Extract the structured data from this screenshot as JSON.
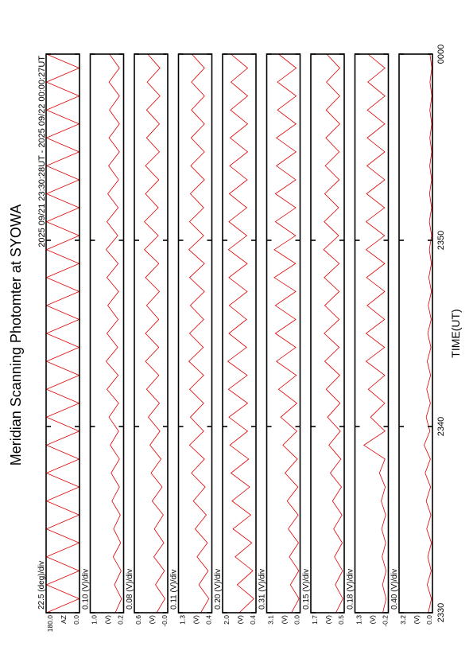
{
  "title": "Meridian Scanning Photomter at SYOWA",
  "subtitle": "2025 09/21 23:30:28UT - 2025 09/22 00:00:27UT",
  "chart_data": [
    {
      "type": "line",
      "label": "22.5 (deg)/div",
      "ylabel": "AZ",
      "x": [
        0,
        0.75,
        1.5,
        2.25,
        3,
        3.75,
        4.5,
        5.25,
        6,
        6.75,
        7.5,
        8.25,
        9,
        9.75,
        10.5,
        11.25,
        12,
        12.75,
        13.5,
        14.25,
        15,
        15.75,
        16.5,
        17.25,
        18,
        18.75,
        19.5,
        20.25,
        21,
        21.75,
        22.5,
        23.25,
        24,
        24.75,
        25.5,
        26.25,
        27,
        27.75,
        28.5,
        29.25,
        30
      ],
      "series": [
        {
          "color": "#e00000",
          "values": [
            178,
            2,
            178,
            2,
            178,
            2,
            178,
            2,
            178,
            2,
            178,
            2,
            178,
            2,
            178,
            2,
            178,
            2,
            178,
            2,
            178,
            2,
            178,
            2,
            178,
            2,
            178,
            2,
            178,
            2,
            178,
            2,
            178,
            2,
            178,
            2,
            178,
            2,
            178,
            2,
            178
          ]
        }
      ],
      "xlim": [
        0,
        30
      ],
      "ylim": [
        0,
        180
      ],
      "yticks": [
        {
          "value": 0,
          "label": "0.0"
        },
        {
          "value": 180,
          "label": "180.0"
        }
      ]
    },
    {
      "type": "line",
      "label": "0.10 (V)/div",
      "ylabel": "(V)",
      "x": [
        0,
        0.75,
        1.5,
        2.25,
        3,
        3.75,
        4.5,
        5.25,
        6,
        6.75,
        7.5,
        8.25,
        9,
        9.75,
        10.5,
        11.25,
        12,
        12.75,
        13.5,
        14.25,
        15,
        15.75,
        16.5,
        17.25,
        18,
        18.75,
        19.5,
        20.25,
        21,
        21.75,
        22.5,
        23.25,
        24,
        24.75,
        25.5,
        26.25,
        27,
        27.75,
        28.5,
        29.25,
        30
      ],
      "series": [
        {
          "color": "#e00000",
          "values": [
            0.4,
            0.25,
            0.42,
            0.26,
            0.45,
            0.27,
            0.44,
            0.28,
            0.48,
            0.3,
            0.5,
            0.3,
            0.52,
            0.32,
            0.55,
            0.32,
            0.6,
            0.33,
            0.62,
            0.34,
            0.6,
            0.33,
            0.58,
            0.32,
            0.6,
            0.33,
            0.62,
            0.34,
            0.6,
            0.33,
            0.58,
            0.32,
            0.56,
            0.3,
            0.55,
            0.3,
            0.54,
            0.3,
            0.55,
            0.3,
            0.54
          ]
        }
      ],
      "xlim": [
        0,
        30
      ],
      "ylim": [
        0.2,
        1.0
      ],
      "yticks": [
        0.2,
        {
          "value": 1.0,
          "label": "1.0"
        }
      ]
    },
    {
      "type": "line",
      "label": "0.08 (V)/div",
      "ylabel": "(V)",
      "x": [
        0,
        0.75,
        1.5,
        2.25,
        3,
        3.75,
        4.5,
        5.25,
        6,
        6.75,
        7.5,
        8.25,
        9,
        9.75,
        10.5,
        11.25,
        12,
        12.75,
        13.5,
        14.25,
        15,
        15.75,
        16.5,
        17.25,
        18,
        18.75,
        19.5,
        20.25,
        21,
        21.75,
        22.5,
        23.25,
        24,
        24.75,
        25.5,
        26.25,
        27,
        27.75,
        28.5,
        29.25,
        30
      ],
      "series": [
        {
          "color": "#e00000",
          "values": [
            0.2,
            0.05,
            0.22,
            0.06,
            0.25,
            0.07,
            0.24,
            0.08,
            0.28,
            0.1,
            0.3,
            0.12,
            0.32,
            0.14,
            0.35,
            0.15,
            0.38,
            0.16,
            0.4,
            0.16,
            0.4,
            0.16,
            0.38,
            0.15,
            0.4,
            0.16,
            0.42,
            0.17,
            0.42,
            0.17,
            0.4,
            0.16,
            0.4,
            0.15,
            0.38,
            0.15,
            0.38,
            0.14,
            0.37,
            0.14,
            0.36
          ]
        }
      ],
      "xlim": [
        0,
        30
      ],
      "ylim": [
        0,
        0.6
      ],
      "yticks": [
        {
          "value": 0,
          "label": "-0.0"
        },
        0.6
      ]
    },
    {
      "type": "line",
      "label": "0.11 (V)/div",
      "ylabel": "(V)",
      "x": [
        0,
        0.75,
        1.5,
        2.25,
        3,
        3.75,
        4.5,
        5.25,
        6,
        6.75,
        7.5,
        8.25,
        9,
        9.75,
        10.5,
        11.25,
        12,
        12.75,
        13.5,
        14.25,
        15,
        15.75,
        16.5,
        17.25,
        18,
        18.75,
        19.5,
        20.25,
        21,
        21.75,
        22.5,
        23.25,
        24,
        24.75,
        25.5,
        26.25,
        27,
        27.75,
        28.5,
        29.25,
        30
      ],
      "series": [
        {
          "color": "#e00000",
          "values": [
            0.7,
            0.48,
            0.75,
            0.5,
            0.8,
            0.52,
            0.85,
            0.55,
            0.9,
            0.58,
            0.95,
            0.6,
            1.0,
            0.62,
            0.98,
            0.62,
            1.0,
            0.62,
            1.02,
            0.63,
            1.0,
            0.62,
            0.98,
            0.6,
            1.0,
            0.6,
            1.02,
            0.62,
            1.0,
            0.62,
            0.98,
            0.6,
            0.97,
            0.6,
            0.96,
            0.6,
            0.95,
            0.6,
            0.95,
            0.6,
            0.94
          ]
        }
      ],
      "xlim": [
        0,
        30
      ],
      "ylim": [
        0.4,
        1.3
      ],
      "yticks": [
        0.4,
        1.3
      ]
    },
    {
      "type": "line",
      "label": "0.20 (V)/div",
      "ylabel": "(V)",
      "x": [
        0,
        0.75,
        1.5,
        2.25,
        3,
        3.75,
        4.5,
        5.25,
        6,
        6.75,
        7.5,
        8.25,
        9,
        9.75,
        10.5,
        11.25,
        12,
        12.75,
        13.5,
        14.25,
        15,
        15.75,
        16.5,
        17.25,
        18,
        18.75,
        19.5,
        20.25,
        21,
        21.75,
        22.5,
        23.25,
        24,
        24.75,
        25.5,
        26.25,
        27,
        27.75,
        28.5,
        29.25,
        30
      ],
      "series": [
        {
          "color": "#e00000",
          "values": [
            1.2,
            0.5,
            1.3,
            0.55,
            1.4,
            0.6,
            1.5,
            0.65,
            1.55,
            0.7,
            1.6,
            0.75,
            1.65,
            0.8,
            1.7,
            0.8,
            1.72,
            0.82,
            1.75,
            0.85,
            1.7,
            0.85,
            1.68,
            0.82,
            1.7,
            0.82,
            1.72,
            0.84,
            1.7,
            0.84,
            1.68,
            0.82,
            1.66,
            0.8,
            1.64,
            0.8,
            1.62,
            0.8,
            1.6,
            0.8,
            1.6
          ]
        }
      ],
      "xlim": [
        0,
        30
      ],
      "ylim": [
        0.4,
        2.0
      ],
      "yticks": [
        0.4,
        {
          "value": 2.0,
          "label": "2.0"
        }
      ]
    },
    {
      "type": "line",
      "label": "0.31 (V)/div",
      "ylabel": "(V)",
      "x": [
        0,
        0.75,
        1.5,
        2.25,
        3,
        3.75,
        4.5,
        5.25,
        6,
        6.75,
        7.5,
        8.25,
        9,
        9.75,
        10.5,
        11.25,
        12,
        12.75,
        13.5,
        14.25,
        15,
        15.75,
        16.5,
        17.25,
        18,
        18.75,
        19.5,
        20.25,
        21,
        21.75,
        22.5,
        23.25,
        24,
        24.75,
        25.5,
        26.25,
        27,
        27.75,
        28.5,
        29.25,
        30
      ],
      "series": [
        {
          "color": "#e00000",
          "values": [
            0.8,
            0.1,
            0.9,
            0.12,
            1.0,
            0.15,
            1.1,
            0.18,
            1.2,
            0.2,
            1.4,
            0.25,
            1.6,
            0.3,
            1.8,
            0.3,
            2.0,
            0.35,
            2.2,
            0.4,
            2.3,
            0.4,
            2.3,
            0.4,
            2.4,
            0.42,
            2.4,
            0.42,
            2.3,
            0.4,
            2.3,
            0.4,
            2.2,
            0.38,
            2.2,
            0.38,
            2.1,
            0.36,
            2.1,
            0.36,
            2.0
          ]
        }
      ],
      "xlim": [
        0,
        30
      ],
      "ylim": [
        0,
        3.1
      ],
      "yticks": [
        {
          "value": 0,
          "label": "0.0"
        },
        3.1
      ]
    },
    {
      "type": "line",
      "label": "0.15 (V)/div",
      "ylabel": "(V)",
      "x": [
        0,
        0.75,
        1.5,
        2.25,
        3,
        3.75,
        4.5,
        5.25,
        6,
        6.75,
        7.5,
        8.25,
        9,
        9.75,
        10.5,
        11.25,
        12,
        12.75,
        13.5,
        14.25,
        15,
        15.75,
        16.5,
        17.25,
        18,
        18.75,
        19.5,
        20.25,
        21,
        21.75,
        22.5,
        23.25,
        24,
        24.75,
        25.5,
        26.25,
        27,
        27.75,
        28.5,
        29.25,
        30
      ],
      "series": [
        {
          "color": "#e00000",
          "values": [
            0.8,
            0.55,
            0.82,
            0.56,
            0.85,
            0.57,
            0.88,
            0.58,
            0.92,
            0.6,
            1.0,
            0.62,
            1.05,
            0.64,
            1.1,
            0.65,
            1.15,
            0.66,
            1.2,
            0.68,
            1.22,
            0.68,
            1.2,
            0.68,
            1.22,
            0.68,
            1.24,
            0.7,
            1.22,
            0.7,
            1.2,
            0.68,
            1.18,
            0.68,
            1.16,
            0.66,
            1.15,
            0.66,
            1.14,
            0.66,
            1.13
          ]
        }
      ],
      "xlim": [
        0,
        30
      ],
      "ylim": [
        0.5,
        1.7
      ],
      "yticks": [
        0.5,
        1.7
      ]
    },
    {
      "type": "line",
      "label": "0.18 (V)/div",
      "ylabel": "(V)",
      "x": [
        0,
        0.75,
        1.5,
        2.25,
        3,
        3.75,
        4.5,
        5.25,
        6,
        6.75,
        7.5,
        8.25,
        9,
        9.75,
        10.5,
        11.25,
        12,
        12.75,
        13.5,
        14.25,
        15,
        15.75,
        16.5,
        17.25,
        18,
        18.75,
        19.5,
        20.25,
        21,
        21.75,
        22.5,
        23.25,
        24,
        24.75,
        25.5,
        26.25,
        27,
        27.75,
        28.5,
        29.25,
        30
      ],
      "series": [
        {
          "color": "#e00000",
          "values": [
            0.05,
            -0.1,
            0.06,
            -0.1,
            0.08,
            -0.08,
            0.1,
            -0.08,
            0.12,
            -0.06,
            0.2,
            -0.05,
            0.9,
            -0.05,
            0.6,
            -0.04,
            0.7,
            -0.04,
            0.8,
            -0.03,
            0.8,
            -0.03,
            0.75,
            -0.04,
            0.78,
            -0.04,
            0.8,
            -0.03,
            0.8,
            -0.03,
            0.78,
            -0.04,
            0.76,
            -0.04,
            0.75,
            -0.04,
            0.74,
            -0.05,
            0.72,
            -0.05,
            0.72
          ]
        }
      ],
      "xlim": [
        0,
        30
      ],
      "ylim": [
        -0.2,
        1.3
      ],
      "yticks": [
        -0.2,
        1.3
      ]
    },
    {
      "type": "line",
      "label": "0.40 (V)/div",
      "ylabel": "(V)",
      "xlabel": "TIME(UT)",
      "x": [
        0,
        0.75,
        1.5,
        2.25,
        3,
        3.75,
        4.5,
        5.25,
        6,
        6.75,
        7.5,
        8.25,
        9,
        9.75,
        10.5,
        11.25,
        12,
        12.75,
        13.5,
        14.25,
        15,
        15.75,
        16.5,
        17.25,
        18,
        18.75,
        19.5,
        20.25,
        21,
        21.75,
        22.5,
        23.25,
        24,
        24.75,
        25.5,
        26.25,
        27,
        27.75,
        28.5,
        29.25,
        30
      ],
      "series": [
        {
          "color": "#e00000",
          "values": [
            0.4,
            0.1,
            0.5,
            0.12,
            0.45,
            0.1,
            0.55,
            0.15,
            0.6,
            0.18,
            0.7,
            0.2,
            0.8,
            0.25,
            0.6,
            0.2,
            0.55,
            0.18,
            0.5,
            0.15,
            0.45,
            0.12,
            0.4,
            0.1,
            0.35,
            0.1,
            0.3,
            0.08,
            0.3,
            0.08,
            0.28,
            0.08,
            0.26,
            0.07,
            0.25,
            0.07,
            0.25,
            0.06,
            0.24,
            0.06,
            0.24
          ]
        }
      ],
      "xlim": [
        0,
        30
      ],
      "ylim": [
        0,
        3.2
      ],
      "yticks": [
        {
          "value": 0,
          "label": "0.0"
        },
        3.2
      ],
      "xticks": [
        {
          "value": 0,
          "label": "2330"
        },
        {
          "value": 10,
          "label": "2340"
        },
        {
          "value": 20,
          "label": "2350"
        },
        {
          "value": 30,
          "label": "0000"
        }
      ]
    }
  ]
}
